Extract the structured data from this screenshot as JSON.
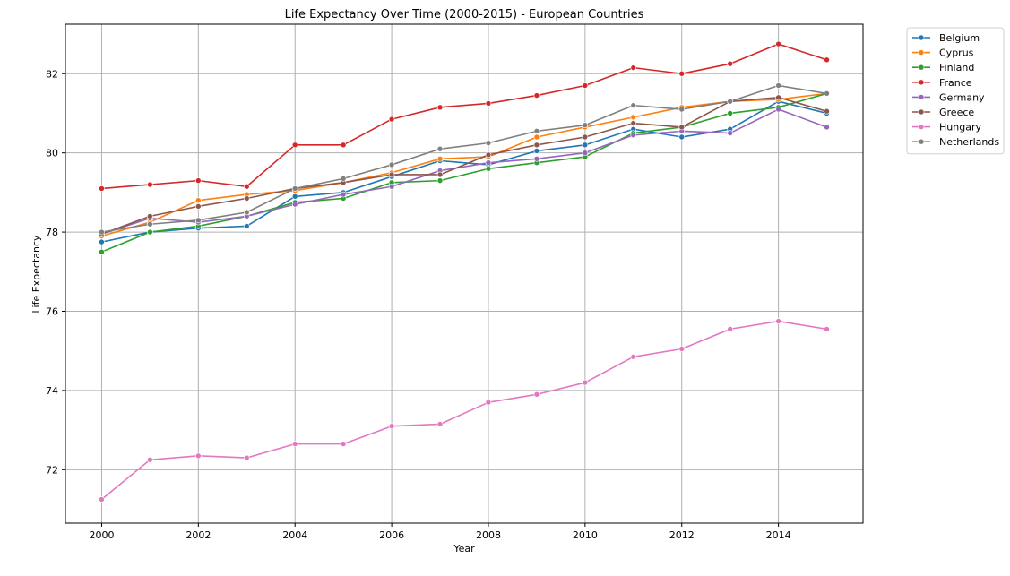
{
  "chart_data": {
    "type": "line",
    "title": "Life Expectancy Over Time (2000-2015) - European Countries",
    "xlabel": "Year",
    "ylabel": "Life Expectancy",
    "x": [
      2000,
      2001,
      2002,
      2003,
      2004,
      2005,
      2006,
      2007,
      2008,
      2009,
      2010,
      2011,
      2012,
      2013,
      2014,
      2015
    ],
    "xlim": [
      1999.25,
      2015.75
    ],
    "ylim": [
      70.65,
      83.25
    ],
    "xticks": [
      "2000",
      "2002",
      "2004",
      "2006",
      "2008",
      "2010",
      "2012",
      "2014"
    ],
    "yticks": [
      "72",
      "74",
      "76",
      "78",
      "80",
      "82"
    ],
    "grid": true,
    "legend_position": "outside-top-right",
    "series": [
      {
        "name": "Belgium",
        "color": "#1f77b4",
        "values": [
          77.75,
          78.0,
          78.1,
          78.15,
          78.9,
          79.0,
          79.4,
          79.8,
          79.7,
          80.05,
          80.2,
          80.6,
          80.4,
          80.6,
          81.3,
          81.0
        ]
      },
      {
        "name": "Cyprus",
        "color": "#ff7f0e",
        "values": [
          77.9,
          78.25,
          78.8,
          78.95,
          79.05,
          79.25,
          79.5,
          79.85,
          79.9,
          80.4,
          80.65,
          80.9,
          81.15,
          81.3,
          81.35,
          81.5
        ]
      },
      {
        "name": "Finland",
        "color": "#2ca02c",
        "values": [
          77.5,
          78.0,
          78.15,
          78.4,
          78.75,
          78.85,
          79.25,
          79.3,
          79.6,
          79.75,
          79.9,
          80.5,
          80.65,
          81.0,
          81.15,
          81.5
        ]
      },
      {
        "name": "France",
        "color": "#d62728",
        "values": [
          79.1,
          79.2,
          79.3,
          79.15,
          80.2,
          80.2,
          80.85,
          81.15,
          81.25,
          81.45,
          81.7,
          82.15,
          82.0,
          82.25,
          82.75,
          82.35
        ]
      },
      {
        "name": "Germany",
        "color": "#9467bd",
        "values": [
          77.95,
          78.35,
          78.25,
          78.4,
          78.7,
          78.95,
          79.15,
          79.55,
          79.75,
          79.85,
          80.0,
          80.45,
          80.55,
          80.5,
          81.1,
          80.65
        ]
      },
      {
        "name": "Greece",
        "color": "#8c564b",
        "values": [
          77.95,
          78.4,
          78.65,
          78.85,
          79.1,
          79.25,
          79.45,
          79.45,
          79.95,
          80.2,
          80.4,
          80.75,
          80.65,
          81.3,
          81.4,
          81.05
        ]
      },
      {
        "name": "Hungary",
        "color": "#e377c2",
        "values": [
          71.25,
          72.25,
          72.35,
          72.3,
          72.65,
          72.65,
          73.1,
          73.15,
          73.7,
          73.9,
          74.2,
          74.85,
          75.05,
          75.55,
          75.75,
          75.55
        ]
      },
      {
        "name": "Netherlands",
        "color": "#7f7f7f",
        "values": [
          78.0,
          78.2,
          78.3,
          78.5,
          79.1,
          79.35,
          79.7,
          80.1,
          80.25,
          80.55,
          80.7,
          81.2,
          81.1,
          81.3,
          81.7,
          81.5
        ]
      }
    ]
  }
}
